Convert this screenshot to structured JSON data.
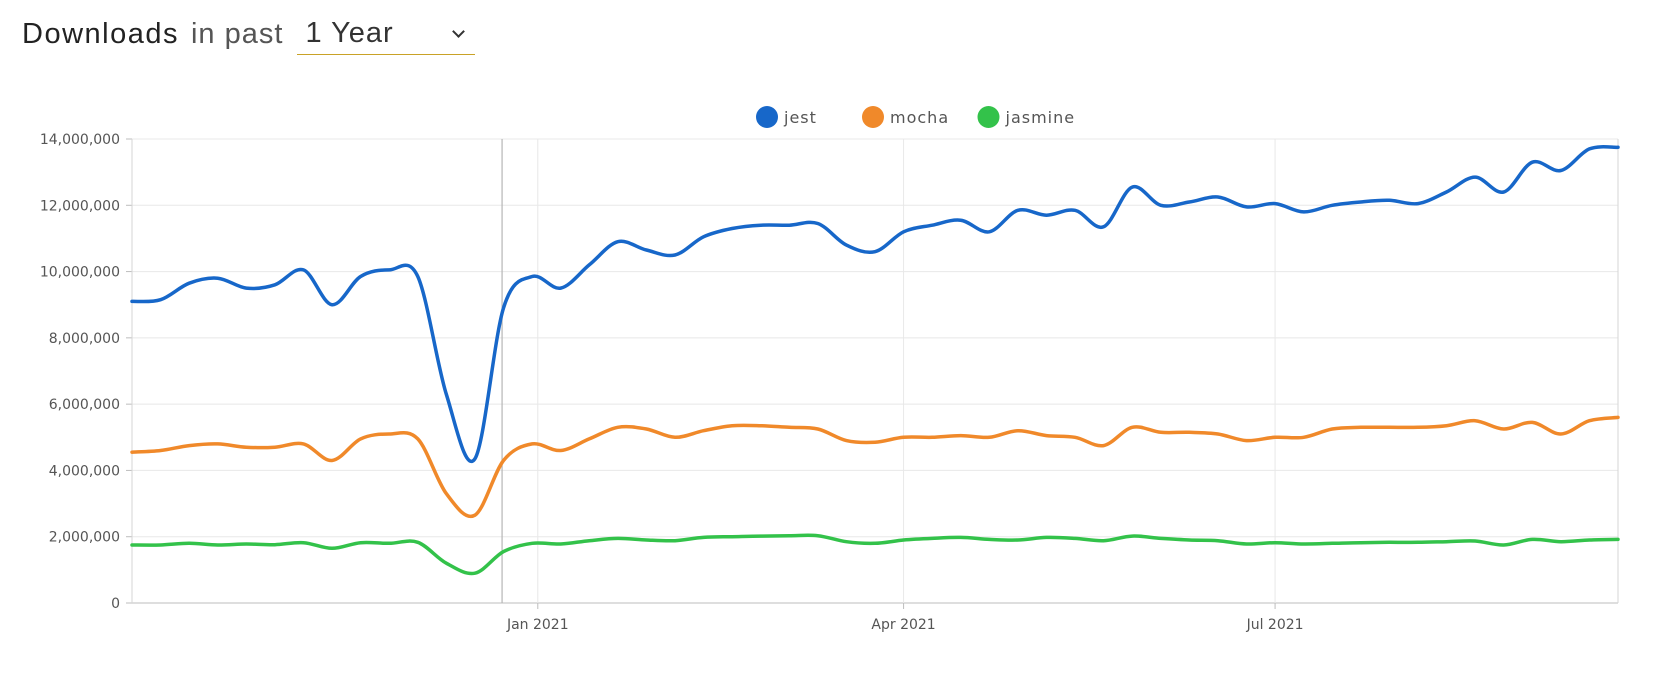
{
  "header": {
    "title": "Downloads",
    "subtitle": "in past",
    "period": "1 Year"
  },
  "chart_data": {
    "type": "line",
    "title": "Downloads in past 1 Year",
    "xlabel": "",
    "ylabel": "",
    "ylim": [
      0,
      14000000
    ],
    "yticks": [
      0,
      2000000,
      4000000,
      6000000,
      8000000,
      10000000,
      12000000,
      14000000
    ],
    "ytick_labels": [
      "0",
      "2,000,000",
      "4,000,000",
      "6,000,000",
      "8,000,000",
      "10,000,000",
      "12,000,000",
      "14,000,000"
    ],
    "xlim": [
      0,
      52
    ],
    "xticks": [
      {
        "x": 14.2,
        "label": "Jan 2021"
      },
      {
        "x": 27,
        "label": "Apr 2021"
      },
      {
        "x": 40,
        "label": "Jul 2021"
      }
    ],
    "grid": true,
    "legend": "top-center",
    "x": [
      0,
      1,
      2,
      3,
      4,
      5,
      6,
      7,
      8,
      9,
      10,
      11,
      12,
      13,
      14,
      15,
      16,
      17,
      18,
      19,
      20,
      21,
      22,
      23,
      24,
      25,
      26,
      27,
      28,
      29,
      30,
      31,
      32,
      33,
      34,
      35,
      36,
      37,
      38,
      39,
      40,
      41,
      42,
      43,
      44,
      45,
      46,
      47,
      48,
      49,
      50,
      51,
      52
    ],
    "series": [
      {
        "name": "jest",
        "color": "#1767c9",
        "values": [
          9100000,
          9150000,
          9650000,
          9800000,
          9500000,
          9600000,
          10050000,
          9000000,
          9850000,
          10050000,
          9850000,
          6300000,
          4350000,
          8900000,
          9850000,
          9500000,
          10200000,
          10900000,
          10650000,
          10500000,
          11050000,
          11300000,
          11400000,
          11400000,
          11450000,
          10800000,
          10600000,
          11200000,
          11400000,
          11550000,
          11200000,
          11850000,
          11700000,
          11850000,
          11350000,
          12550000,
          12000000,
          12100000,
          12250000,
          11950000,
          12050000,
          11800000,
          12000000,
          12100000,
          12150000,
          12050000,
          12400000,
          12850000,
          12400000,
          13300000,
          13050000,
          13700000,
          13750000
        ]
      },
      {
        "name": "mocha",
        "color": "#f0892a",
        "values": [
          4550000,
          4600000,
          4750000,
          4800000,
          4700000,
          4700000,
          4800000,
          4300000,
          4950000,
          5100000,
          4950000,
          3300000,
          2650000,
          4300000,
          4800000,
          4600000,
          4950000,
          5300000,
          5250000,
          5000000,
          5200000,
          5350000,
          5350000,
          5300000,
          5250000,
          4900000,
          4850000,
          5000000,
          5000000,
          5050000,
          5000000,
          5200000,
          5050000,
          5000000,
          4750000,
          5300000,
          5150000,
          5150000,
          5100000,
          4900000,
          5000000,
          5000000,
          5250000,
          5300000,
          5300000,
          5300000,
          5350000,
          5500000,
          5250000,
          5450000,
          5100000,
          5500000,
          5600000
        ]
      },
      {
        "name": "jasmine",
        "color": "#33c24a",
        "values": [
          1750000,
          1750000,
          1800000,
          1750000,
          1780000,
          1760000,
          1820000,
          1650000,
          1820000,
          1800000,
          1830000,
          1200000,
          900000,
          1550000,
          1800000,
          1780000,
          1880000,
          1950000,
          1900000,
          1880000,
          1980000,
          2000000,
          2020000,
          2030000,
          2030000,
          1850000,
          1800000,
          1900000,
          1950000,
          1980000,
          1920000,
          1900000,
          1980000,
          1950000,
          1880000,
          2020000,
          1950000,
          1900000,
          1880000,
          1780000,
          1820000,
          1780000,
          1800000,
          1820000,
          1830000,
          1830000,
          1850000,
          1870000,
          1750000,
          1920000,
          1850000,
          1900000,
          1920000
        ]
      }
    ]
  }
}
